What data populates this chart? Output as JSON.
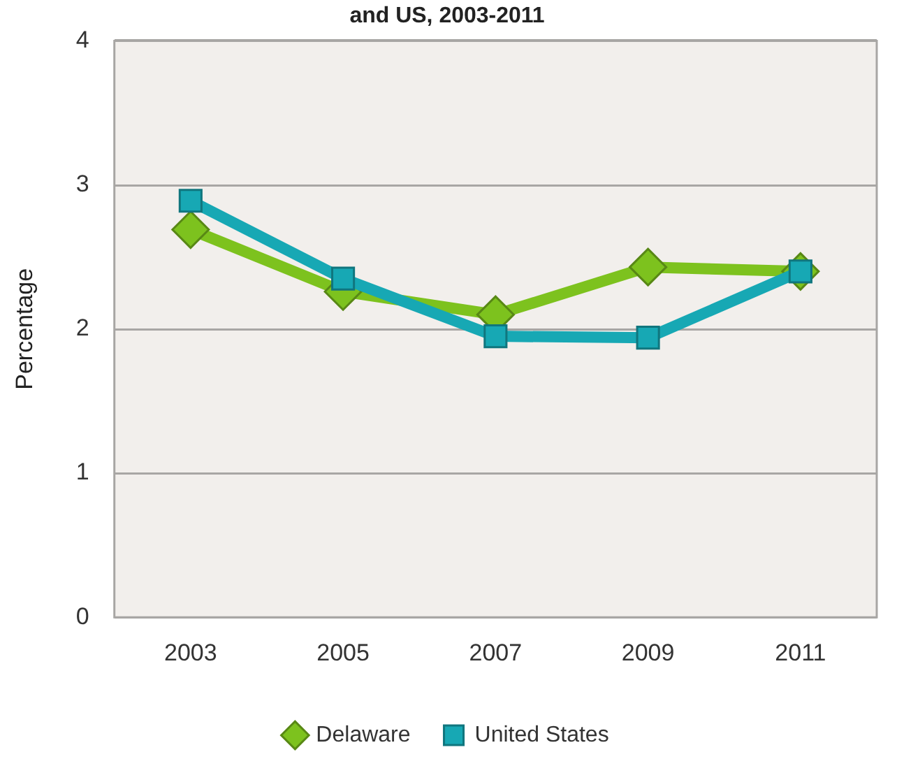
{
  "chart_data": {
    "type": "line",
    "title": "and US, 2003-2011",
    "ylabel": "Percentage",
    "categories": [
      "2003",
      "2005",
      "2007",
      "2009",
      "2011"
    ],
    "series": [
      {
        "name": "Delaware",
        "color": "#7dc21e",
        "marker": "diamond",
        "values": [
          2.69,
          2.26,
          2.1,
          2.43,
          2.4
        ]
      },
      {
        "name": "United States",
        "color": "#17a8b4",
        "marker": "square",
        "values": [
          2.89,
          2.35,
          1.95,
          1.94,
          2.4
        ]
      }
    ],
    "ylim": [
      0,
      4
    ],
    "yticks": [
      0,
      1,
      2,
      3,
      4
    ],
    "grid": "y",
    "legend": "bottom"
  }
}
